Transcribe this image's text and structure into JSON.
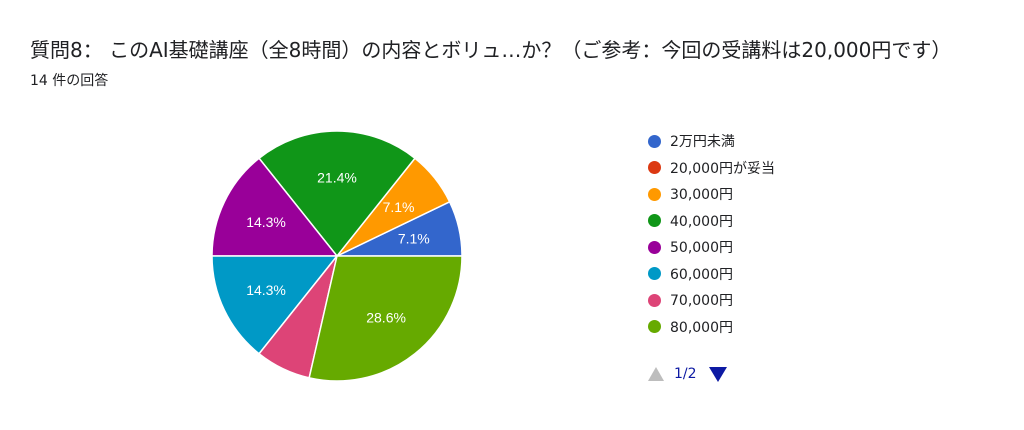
{
  "header": {
    "title": "質問8： このAI基礎講座（全8時間）の内容とボリュ…か？（ご参考：今回の受講料は20,000円です）",
    "responses": "14 件の回答"
  },
  "pager": {
    "label": "1/2"
  },
  "chart_data": {
    "type": "pie",
    "legend_position": "right",
    "categories": [
      "2万円未満",
      "20,000円が妥当",
      "30,000円",
      "40,000円",
      "50,000円",
      "60,000円",
      "70,000円",
      "80,000円"
    ],
    "values": [
      1,
      0,
      1,
      3,
      2,
      2,
      1,
      4
    ],
    "percent_labels": [
      "7.1%",
      "",
      "7.1%",
      "21.4%",
      "14.3%",
      "14.3%",
      "",
      "28.6%"
    ],
    "colors": [
      "#3366cc",
      "#dc3912",
      "#ff9900",
      "#109618",
      "#990099",
      "#0099c6",
      "#dd4477",
      "#66aa00"
    ]
  }
}
